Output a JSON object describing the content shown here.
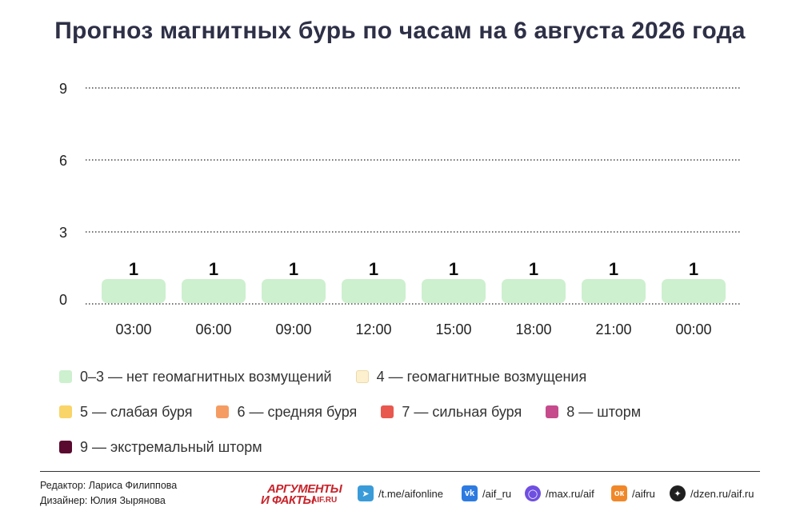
{
  "title": "Прогноз магнитных бурь по часам на 6 августа 2026 года",
  "chart_data": {
    "type": "bar",
    "title": "Прогноз магнитных бурь по часам на 6 августа 2026 года",
    "categories": [
      "03:00",
      "06:00",
      "09:00",
      "12:00",
      "15:00",
      "18:00",
      "21:00",
      "00:00"
    ],
    "values": [
      1,
      1,
      1,
      1,
      1,
      1,
      1,
      1
    ],
    "ylim": [
      0,
      9
    ],
    "yticks": [
      "0",
      "3",
      "6",
      "9"
    ],
    "grid": true,
    "bar_color": "#cdf0cf"
  },
  "legend": [
    {
      "label": "0–3 — нет геомагнитных возмущений",
      "color": "#cdf0cf"
    },
    {
      "label": "4 — геомагнитные возмущения",
      "color": "#fdf0cf"
    },
    {
      "label": "5 — слабая буря",
      "color": "#f9d468"
    },
    {
      "label": "6 — средняя буря",
      "color": "#f59c63"
    },
    {
      "label": "7 — сильная буря",
      "color": "#e8584f"
    },
    {
      "label": "8 — шторм",
      "color": "#c64b8c"
    },
    {
      "label": "9 — экстремальный шторм",
      "color": "#5a0a2f"
    }
  ],
  "credits": {
    "editor": "Редактор: Лариса Филиппова",
    "designer": "Дизайнер: Юлия Зырянова"
  },
  "logo": {
    "line1": "АРГУМЕНТЫ",
    "line2": "И ФАКТЫ",
    "line3": "AIF.RU"
  },
  "social": [
    {
      "icon": "telegram-icon",
      "text": "/t.me/aifonline",
      "color": "#3a9bd9"
    },
    {
      "icon": "vk-icon",
      "text": "/aif_ru",
      "color": "#2d7be0"
    },
    {
      "icon": "max-icon",
      "text": "/max.ru/aif",
      "color": "#6f4fe0"
    },
    {
      "icon": "odnoklassniki-icon",
      "text": "/aifru",
      "color": "#f0882a"
    },
    {
      "icon": "dzen-icon",
      "text": "/dzen.ru/aif.ru",
      "color": "#1f1f1f"
    }
  ]
}
